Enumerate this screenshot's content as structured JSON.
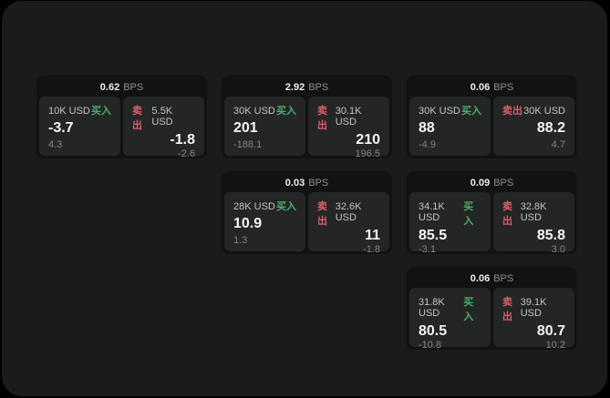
{
  "page": {
    "canvas_color": "#000000",
    "background_color": "#1a1b1b",
    "card_color": "#111213",
    "panel_color": "#242525",
    "buy_color": "#4cae6e",
    "sell_color": "#d95f6e"
  },
  "labels": {
    "bps": "BPS",
    "buy": "买入",
    "sell": "卖出"
  },
  "cards": [
    {
      "bps": "0.62",
      "buy": {
        "amount": "10K USD",
        "value": "-3.7",
        "sub": "4.3"
      },
      "sell": {
        "amount": "5.5K USD",
        "value": "-1.8",
        "sub": "-2.6"
      }
    },
    {
      "bps": "2.92",
      "buy": {
        "amount": "30K USD",
        "value": "201",
        "sub": "-188.1"
      },
      "sell": {
        "amount": "30.1K USD",
        "value": "210",
        "sub": "196.5"
      }
    },
    {
      "bps": "0.06",
      "buy": {
        "amount": "30K USD",
        "value": "88",
        "sub": "-4.9"
      },
      "sell": {
        "amount": "30K USD",
        "value": "88.2",
        "sub": "4.7"
      }
    },
    {
      "bps": "0.03",
      "buy": {
        "amount": "28K USD",
        "value": "10.9",
        "sub": "1.3"
      },
      "sell": {
        "amount": "32.6K USD",
        "value": "11",
        "sub": "-1.8"
      }
    },
    {
      "bps": "0.09",
      "buy": {
        "amount": "34.1K USD",
        "value": "85.5",
        "sub": "-3.1"
      },
      "sell": {
        "amount": "32.8K USD",
        "value": "85.8",
        "sub": "3.0"
      }
    },
    {
      "bps": "0.06",
      "buy": {
        "amount": "31.8K USD",
        "value": "80.5",
        "sub": "-10.8"
      },
      "sell": {
        "amount": "39.1K USD",
        "value": "80.7",
        "sub": "10.2"
      }
    }
  ]
}
